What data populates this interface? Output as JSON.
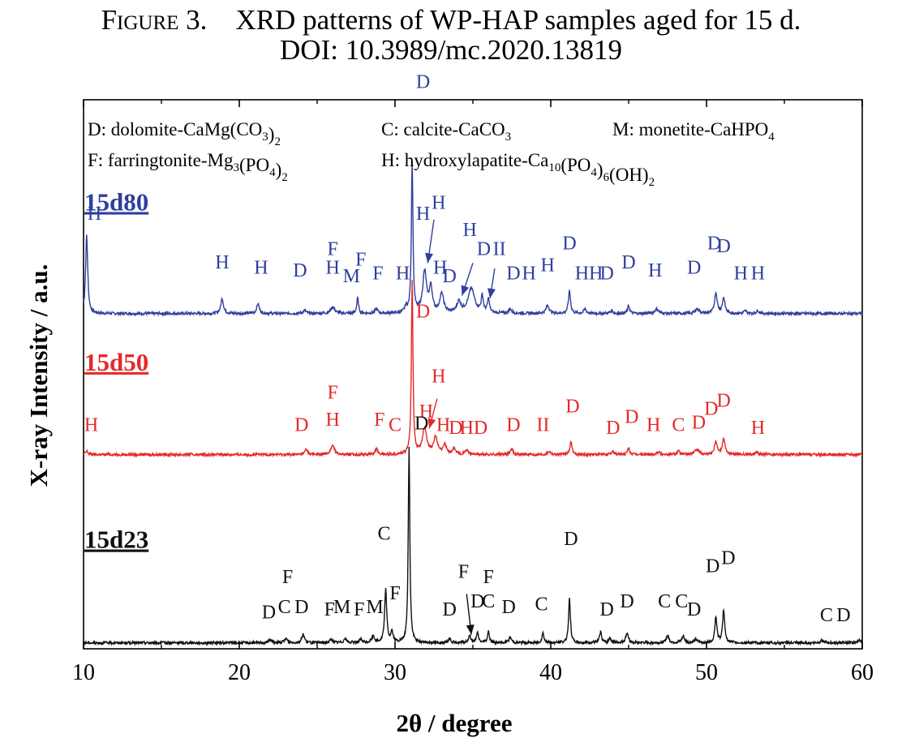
{
  "caption": {
    "figure_label": "Figure 3.",
    "title": "XRD patterns of WP-HAP samples aged for 15 d.",
    "doi": "DOI: 10.3989/mc.2020.13819"
  },
  "chart_data": {
    "type": "line",
    "xlabel": "2θ  / degree",
    "ylabel": "X-ray Intensity / a.u.",
    "xlim": [
      10,
      60
    ],
    "ylim": [
      0,
      10
    ],
    "xticks": [
      10,
      20,
      30,
      40,
      50,
      60
    ],
    "x_tick_labels": [
      "10",
      "20",
      "30",
      "40",
      "50",
      "60"
    ],
    "grid": false,
    "legend": [
      {
        "text": "D: dolomite-CaMg(CO",
        "sub1": "3",
        "mid": ")",
        "sub2": "2",
        "tail": ""
      },
      {
        "text": "C: calcite-CaCO",
        "sub1": "3",
        "mid": "",
        "sub2": "",
        "tail": ""
      },
      {
        "text": "M: monetite-CaHPO",
        "sub1": "4",
        "mid": "",
        "sub2": "",
        "tail": ""
      },
      {
        "text": "F: farringtonite-Mg",
        "sub1": "3",
        "mid": "(PO",
        "sub2": "4",
        "tail": ")",
        "sub3": "2"
      },
      {
        "text": "H: hydroxylapatite-Ca",
        "sub1": "10",
        "mid": "(PO",
        "sub2": "4",
        "tail": ")",
        "sub3": "6",
        "tail2": "(OH)",
        "sub4": "2"
      }
    ],
    "series": [
      {
        "name": "15d80",
        "color": "#2e3f9e",
        "baseline": 6.12,
        "peaks": [
          {
            "x": 10.2,
            "h": 1.45,
            "w": 0.08
          },
          {
            "x": 18.9,
            "h": 0.28,
            "w": 0.1
          },
          {
            "x": 21.2,
            "h": 0.18,
            "w": 0.1
          },
          {
            "x": 24.2,
            "h": 0.06,
            "w": 0.1
          },
          {
            "x": 26.0,
            "h": 0.12,
            "w": 0.15
          },
          {
            "x": 27.6,
            "h": 0.28,
            "w": 0.07
          },
          {
            "x": 28.8,
            "h": 0.08,
            "w": 0.1
          },
          {
            "x": 30.7,
            "h": 0.1,
            "w": 0.1
          },
          {
            "x": 31.1,
            "h": 2.8,
            "w": 0.06
          },
          {
            "x": 31.9,
            "h": 0.75,
            "w": 0.15
          },
          {
            "x": 32.3,
            "h": 0.45,
            "w": 0.12
          },
          {
            "x": 33.0,
            "h": 0.35,
            "w": 0.15
          },
          {
            "x": 34.1,
            "h": 0.2,
            "w": 0.15
          },
          {
            "x": 34.9,
            "h": 0.45,
            "w": 0.25
          },
          {
            "x": 35.6,
            "h": 0.3,
            "w": 0.08
          },
          {
            "x": 36.0,
            "h": 0.25,
            "w": 0.08
          },
          {
            "x": 37.4,
            "h": 0.08,
            "w": 0.1
          },
          {
            "x": 39.8,
            "h": 0.15,
            "w": 0.12
          },
          {
            "x": 41.2,
            "h": 0.42,
            "w": 0.08
          },
          {
            "x": 42.2,
            "h": 0.08,
            "w": 0.1
          },
          {
            "x": 43.9,
            "h": 0.05,
            "w": 0.1
          },
          {
            "x": 45.0,
            "h": 0.14,
            "w": 0.08
          },
          {
            "x": 46.8,
            "h": 0.08,
            "w": 0.15
          },
          {
            "x": 49.4,
            "h": 0.08,
            "w": 0.15
          },
          {
            "x": 50.6,
            "h": 0.38,
            "w": 0.1
          },
          {
            "x": 51.1,
            "h": 0.28,
            "w": 0.1
          },
          {
            "x": 52.5,
            "h": 0.05,
            "w": 0.1
          },
          {
            "x": 53.3,
            "h": 0.05,
            "w": 0.1
          }
        ]
      },
      {
        "name": "15d50",
        "color": "#e4292a",
        "baseline": 3.52,
        "peaks": [
          {
            "x": 10.2,
            "h": 0.06,
            "w": 0.1
          },
          {
            "x": 24.3,
            "h": 0.1,
            "w": 0.1
          },
          {
            "x": 26.0,
            "h": 0.16,
            "w": 0.15
          },
          {
            "x": 28.8,
            "h": 0.1,
            "w": 0.1
          },
          {
            "x": 31.1,
            "h": 3.2,
            "w": 0.06
          },
          {
            "x": 31.9,
            "h": 0.45,
            "w": 0.18
          },
          {
            "x": 32.6,
            "h": 0.3,
            "w": 0.15
          },
          {
            "x": 33.2,
            "h": 0.18,
            "w": 0.12
          },
          {
            "x": 33.8,
            "h": 0.1,
            "w": 0.12
          },
          {
            "x": 34.6,
            "h": 0.08,
            "w": 0.12
          },
          {
            "x": 37.5,
            "h": 0.1,
            "w": 0.1
          },
          {
            "x": 39.9,
            "h": 0.06,
            "w": 0.12
          },
          {
            "x": 41.3,
            "h": 0.24,
            "w": 0.08
          },
          {
            "x": 44.0,
            "h": 0.06,
            "w": 0.1
          },
          {
            "x": 45.0,
            "h": 0.12,
            "w": 0.08
          },
          {
            "x": 46.9,
            "h": 0.05,
            "w": 0.12
          },
          {
            "x": 48.2,
            "h": 0.06,
            "w": 0.12
          },
          {
            "x": 49.4,
            "h": 0.1,
            "w": 0.15
          },
          {
            "x": 50.6,
            "h": 0.25,
            "w": 0.1
          },
          {
            "x": 51.1,
            "h": 0.3,
            "w": 0.1
          },
          {
            "x": 53.2,
            "h": 0.05,
            "w": 0.1
          }
        ]
      },
      {
        "name": "15d23",
        "color": "#111111",
        "baseline": 0.05,
        "peaks": [
          {
            "x": 22.0,
            "h": 0.06,
            "w": 0.1
          },
          {
            "x": 23.0,
            "h": 0.08,
            "w": 0.1
          },
          {
            "x": 24.1,
            "h": 0.16,
            "w": 0.1
          },
          {
            "x": 25.9,
            "h": 0.06,
            "w": 0.12
          },
          {
            "x": 26.8,
            "h": 0.08,
            "w": 0.1
          },
          {
            "x": 27.8,
            "h": 0.06,
            "w": 0.1
          },
          {
            "x": 28.6,
            "h": 0.12,
            "w": 0.1
          },
          {
            "x": 29.4,
            "h": 0.98,
            "w": 0.08
          },
          {
            "x": 29.8,
            "h": 0.2,
            "w": 0.08
          },
          {
            "x": 30.9,
            "h": 3.6,
            "w": 0.06
          },
          {
            "x": 33.5,
            "h": 0.08,
            "w": 0.1
          },
          {
            "x": 34.8,
            "h": 0.14,
            "w": 0.08
          },
          {
            "x": 35.3,
            "h": 0.18,
            "w": 0.08
          },
          {
            "x": 36.0,
            "h": 0.2,
            "w": 0.08
          },
          {
            "x": 37.4,
            "h": 0.1,
            "w": 0.1
          },
          {
            "x": 39.5,
            "h": 0.18,
            "w": 0.08
          },
          {
            "x": 41.2,
            "h": 0.82,
            "w": 0.07
          },
          {
            "x": 43.2,
            "h": 0.2,
            "w": 0.08
          },
          {
            "x": 43.8,
            "h": 0.1,
            "w": 0.08
          },
          {
            "x": 44.9,
            "h": 0.18,
            "w": 0.1
          },
          {
            "x": 47.5,
            "h": 0.14,
            "w": 0.1
          },
          {
            "x": 48.5,
            "h": 0.12,
            "w": 0.1
          },
          {
            "x": 49.3,
            "h": 0.06,
            "w": 0.1
          },
          {
            "x": 50.6,
            "h": 0.48,
            "w": 0.08
          },
          {
            "x": 51.1,
            "h": 0.6,
            "w": 0.08
          },
          {
            "x": 57.4,
            "h": 0.05,
            "w": 0.1
          },
          {
            "x": 59.8,
            "h": 0.06,
            "w": 0.1
          }
        ]
      }
    ],
    "peak_labels": [
      {
        "series": "15d80",
        "color": "#2e3f9e",
        "items": [
          {
            "t": "H",
            "x": 10.7,
            "y": 7.85
          },
          {
            "t": "H",
            "x": 18.9,
            "y": 6.95
          },
          {
            "t": "H",
            "x": 21.4,
            "y": 6.85
          },
          {
            "t": "D",
            "x": 23.9,
            "y": 6.8
          },
          {
            "t": "F",
            "x": 26.0,
            "y": 7.2
          },
          {
            "t": "H",
            "x": 26.0,
            "y": 6.85
          },
          {
            "t": "M",
            "x": 27.2,
            "y": 6.7
          },
          {
            "t": "F",
            "x": 27.8,
            "y": 7.0
          },
          {
            "t": "F",
            "x": 28.9,
            "y": 6.75
          },
          {
            "t": "H",
            "x": 30.5,
            "y": 6.75
          },
          {
            "t": "D",
            "x": 31.8,
            "y": 10.28
          },
          {
            "t": "H",
            "x": 31.8,
            "y": 7.85
          },
          {
            "t": "H",
            "x": 32.8,
            "y": 8.05
          },
          {
            "t": "H",
            "x": 32.9,
            "y": 6.85
          },
          {
            "t": "D",
            "x": 33.5,
            "y": 6.7
          },
          {
            "t": "H",
            "x": 34.8,
            "y": 7.55
          },
          {
            "t": "D",
            "x": 35.7,
            "y": 7.2
          },
          {
            "t": "II",
            "x": 36.7,
            "y": 7.2
          },
          {
            "t": "D",
            "x": 37.6,
            "y": 6.75
          },
          {
            "t": "H",
            "x": 38.6,
            "y": 6.75
          },
          {
            "t": "H",
            "x": 39.8,
            "y": 6.9
          },
          {
            "t": "D",
            "x": 41.2,
            "y": 7.3
          },
          {
            "t": "H",
            "x": 42.0,
            "y": 6.75
          },
          {
            "t": "H",
            "x": 42.9,
            "y": 6.75
          },
          {
            "t": "D",
            "x": 43.6,
            "y": 6.75
          },
          {
            "t": "D",
            "x": 45.0,
            "y": 6.95
          },
          {
            "t": "H",
            "x": 46.7,
            "y": 6.8
          },
          {
            "t": "D",
            "x": 49.2,
            "y": 6.85
          },
          {
            "t": "D",
            "x": 50.5,
            "y": 7.3
          },
          {
            "t": "D",
            "x": 51.1,
            "y": 7.25
          },
          {
            "t": "H",
            "x": 52.2,
            "y": 6.75
          },
          {
            "t": "H",
            "x": 53.3,
            "y": 6.75
          }
        ]
      },
      {
        "series": "15d50",
        "color": "#e4292a",
        "items": [
          {
            "t": "H",
            "x": 10.5,
            "y": 3.95
          },
          {
            "t": "D",
            "x": 24.0,
            "y": 3.95
          },
          {
            "t": "F",
            "x": 26.0,
            "y": 4.55
          },
          {
            "t": "H",
            "x": 26.0,
            "y": 4.05
          },
          {
            "t": "F",
            "x": 29.0,
            "y": 4.05
          },
          {
            "t": "C",
            "x": 30.0,
            "y": 3.95
          },
          {
            "t": "D",
            "x": 31.8,
            "y": 6.05
          },
          {
            "t": "H",
            "x": 32.8,
            "y": 4.85
          },
          {
            "t": "H",
            "x": 32.0,
            "y": 4.2
          },
          {
            "t": "H",
            "x": 33.1,
            "y": 3.95
          },
          {
            "t": "D",
            "x": 33.9,
            "y": 3.9
          },
          {
            "t": "H",
            "x": 34.6,
            "y": 3.9
          },
          {
            "t": "D",
            "x": 35.5,
            "y": 3.9
          },
          {
            "t": "D",
            "x": 37.6,
            "y": 3.95
          },
          {
            "t": "II",
            "x": 39.5,
            "y": 3.95
          },
          {
            "t": "D",
            "x": 41.4,
            "y": 4.3
          },
          {
            "t": "D",
            "x": 44.0,
            "y": 3.9
          },
          {
            "t": "D",
            "x": 45.2,
            "y": 4.1
          },
          {
            "t": "H",
            "x": 46.6,
            "y": 3.95
          },
          {
            "t": "C",
            "x": 48.2,
            "y": 3.95
          },
          {
            "t": "D",
            "x": 49.5,
            "y": 4.0
          },
          {
            "t": "D",
            "x": 50.3,
            "y": 4.25
          },
          {
            "t": "D",
            "x": 51.1,
            "y": 4.4
          },
          {
            "t": "H",
            "x": 53.3,
            "y": 3.9
          }
        ]
      },
      {
        "series": "15d23",
        "color": "#111111",
        "items": [
          {
            "t": "D",
            "x": 21.9,
            "y": 0.5
          },
          {
            "t": "C",
            "x": 22.9,
            "y": 0.6
          },
          {
            "t": "F",
            "x": 23.1,
            "y": 1.15
          },
          {
            "t": "D",
            "x": 24.0,
            "y": 0.6
          },
          {
            "t": "F",
            "x": 25.8,
            "y": 0.55
          },
          {
            "t": "M",
            "x": 26.6,
            "y": 0.6
          },
          {
            "t": "F",
            "x": 27.7,
            "y": 0.55
          },
          {
            "t": "M",
            "x": 28.7,
            "y": 0.6
          },
          {
            "t": "C",
            "x": 29.3,
            "y": 1.95
          },
          {
            "t": "F",
            "x": 30.0,
            "y": 0.85
          },
          {
            "t": "D",
            "x": 31.7,
            "y": 3.98
          },
          {
            "t": "D",
            "x": 33.5,
            "y": 0.55
          },
          {
            "t": "F",
            "x": 34.4,
            "y": 1.25
          },
          {
            "t": "D",
            "x": 35.3,
            "y": 0.7
          },
          {
            "t": "C",
            "x": 36.0,
            "y": 0.7
          },
          {
            "t": "F",
            "x": 36.0,
            "y": 1.15
          },
          {
            "t": "D",
            "x": 37.3,
            "y": 0.6
          },
          {
            "t": "C",
            "x": 39.4,
            "y": 0.65
          },
          {
            "t": "D",
            "x": 41.3,
            "y": 1.85
          },
          {
            "t": "D",
            "x": 43.6,
            "y": 0.55
          },
          {
            "t": "D",
            "x": 44.9,
            "y": 0.7
          },
          {
            "t": "C",
            "x": 47.3,
            "y": 0.7
          },
          {
            "t": "C",
            "x": 48.4,
            "y": 0.7
          },
          {
            "t": "D",
            "x": 49.2,
            "y": 0.55
          },
          {
            "t": "D",
            "x": 50.4,
            "y": 1.35
          },
          {
            "t": "D",
            "x": 51.4,
            "y": 1.5
          },
          {
            "t": "C",
            "x": 57.7,
            "y": 0.45
          },
          {
            "t": "D",
            "x": 58.8,
            "y": 0.45
          }
        ]
      }
    ],
    "arrows": [
      {
        "color": "#2e3f9e",
        "x1": 32.5,
        "y1": 7.85,
        "x2": 32.1,
        "y2": 7.05
      },
      {
        "color": "#2e3f9e",
        "x1": 35.0,
        "y1": 7.05,
        "x2": 34.3,
        "y2": 6.45
      },
      {
        "color": "#2e3f9e",
        "x1": 36.4,
        "y1": 6.95,
        "x2": 36.1,
        "y2": 6.4
      },
      {
        "color": "#e4292a",
        "x1": 32.7,
        "y1": 4.55,
        "x2": 32.2,
        "y2": 4.0
      },
      {
        "color": "#111111",
        "x1": 34.6,
        "y1": 0.95,
        "x2": 34.9,
        "y2": 0.2
      }
    ]
  }
}
